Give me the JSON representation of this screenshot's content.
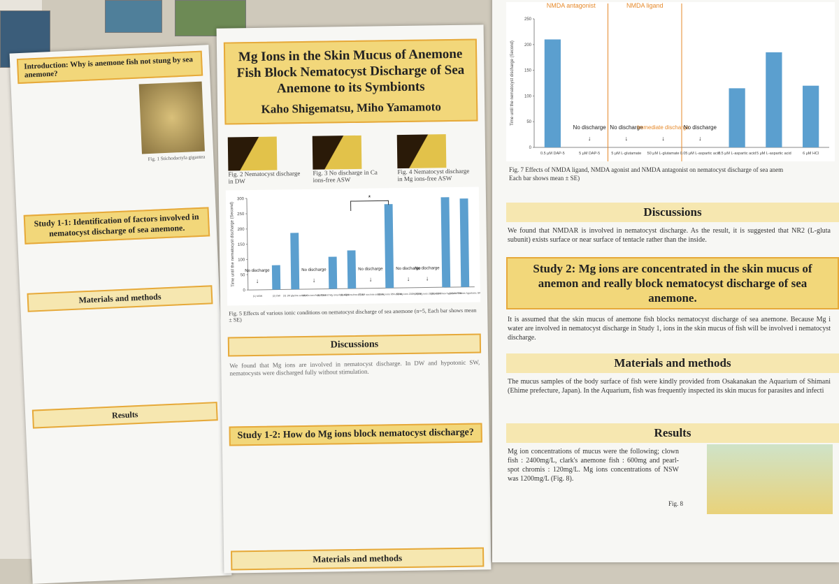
{
  "left_poster": {
    "intro_title": "Introduction: Why is anemone fish not stung by sea anemone?",
    "fig1_caption": "Fig. 1 Stichodactyla gigantea",
    "study1_title": "Study 1-1: Identification of factors involved in nematocyst discharge of sea anemone.",
    "materials_title": "Materials and methods",
    "results_title": "Results"
  },
  "center_poster": {
    "title": "Mg Ions in the Skin Mucus of Anemone Fish Block Nematocyst Discharge of Sea Anemone to its Symbionts",
    "authors": "Kaho Shigematsu, Miho Yamamoto",
    "figures": [
      "Fig. 2 Nematocyst discharge in DW",
      "Fig. 3 No discharge in Ca ions-free ASW",
      "Fig. 4 Nematocyst discharge in Mg ions-free ASW"
    ],
    "chart": {
      "type": "bar",
      "ylabel": "Time until the nematocyst discharge (Second)",
      "categories": [
        "(1) NSW",
        "(2) DW",
        "(3) 1M glycine solution",
        "(4) Ca ions-free ASW",
        "(5) Ca and Mg ions-free ASW",
        "(6) Mg ions-free ASW",
        "(7) 1M sucrose solution",
        "(8) Mg ions 95% ASW",
        "(9) Mg ions 200% ASW",
        "(10) Mg ions 200% ASW",
        "(11) 0.5 times hypotonic SW",
        "(12) 0.75 times hypotonic SW"
      ],
      "values": [
        null,
        80,
        185,
        null,
        105,
        125,
        null,
        275,
        null,
        null,
        295,
        290
      ],
      "bar_notes": [
        "No discharge",
        null,
        null,
        "No discharge",
        null,
        null,
        "No discharge",
        null,
        "No discharge",
        "No discharge",
        null,
        null
      ],
      "annotation": "*",
      "ylim": [
        0,
        300
      ],
      "yticks": [
        0,
        50,
        100,
        150,
        200,
        250,
        300
      ],
      "color": "#5b9fcf"
    },
    "fig5_caption": "Fig. 5 Effects of various ionic conditions on nematocyst discharge of sea anemone (n=5, Each bar shows mean ± SE)",
    "discussions_title": "Discussions",
    "discussions_text": "We found that Mg ions are involved in nematocyst discharge. In DW and hypotonic SW, nematocysts were discharged fully without stimulation.",
    "study12_title": "Study 1-2: How do Mg ions block nematocyst discharge?",
    "materials_title": "Materials and methods"
  },
  "right_poster": {
    "chart": {
      "type": "bar",
      "ylabel": "Time until the nematocyst discharge (Second)",
      "groups": [
        "NMDA antagonist",
        "NMDA ligand"
      ],
      "categories": [
        "0.5 μM DAP-5",
        "5 μM DAP-5",
        "5 μM L-glutamate",
        "50 μM L-glutamate",
        "0.05 μM L-aspartic acid",
        "0.5 μM L-aspartic acid",
        "5 μM L-aspartic acid",
        "6 μM HCl"
      ],
      "values": [
        210,
        null,
        null,
        null,
        null,
        115,
        185,
        120
      ],
      "bar_notes": [
        null,
        "No discharge",
        "No discharge",
        "Immediate discharge",
        "No discharge",
        null,
        null,
        null
      ],
      "ylim": [
        0,
        250
      ],
      "yticks": [
        0,
        50,
        100,
        150,
        200,
        250
      ],
      "color": "#5b9fcf"
    },
    "fig7_caption": "Fig. 7 Effects of NMDA ligand, NMDA agonist and NMDA antagonist on nematocyst discharge of sea anem",
    "fig7_note": "Each bar shows mean ± SE)",
    "discussions_title": "Discussions",
    "discussions_text": "We found that NMDAR is involved in nematocyst discharge. As the result, it is suggested that NR2 (L-gluta subunit) exists surface or near surface of tentacle rather than the inside.",
    "study2_title": "Study 2: Mg ions are concentrated in the skin mucus of anemon and really block nematocyst discharge of sea anemone.",
    "study2_text": "It is assumed that the skin mucus of anemone fish blocks nematocyst discharge of sea anemone. Because Mg i water are involved in nematocyst discharge in Study 1, ions in the skin mucus of fish will be involved i nematocyst discharge.",
    "materials_title": "Materials and methods",
    "materials_text": "The mucus samples of the body surface of fish were kindly provided from Osakanakan the Aquarium of Shimani (Ehime prefecture, Japan). In the Aquarium, fish was frequently inspected its skin mucus for parasites and infecti",
    "results_title": "Results",
    "results_text": "Mg ion concentrations of mucus were the following; clown fish : 2400mg/L, clark's anemone fish : 600mg and pearl-spot chromis : 120mg/L. Mg ions concentrations of NSW was 1200mg/L (Fig. 8).",
    "fig8_caption": "Fig. 8"
  }
}
